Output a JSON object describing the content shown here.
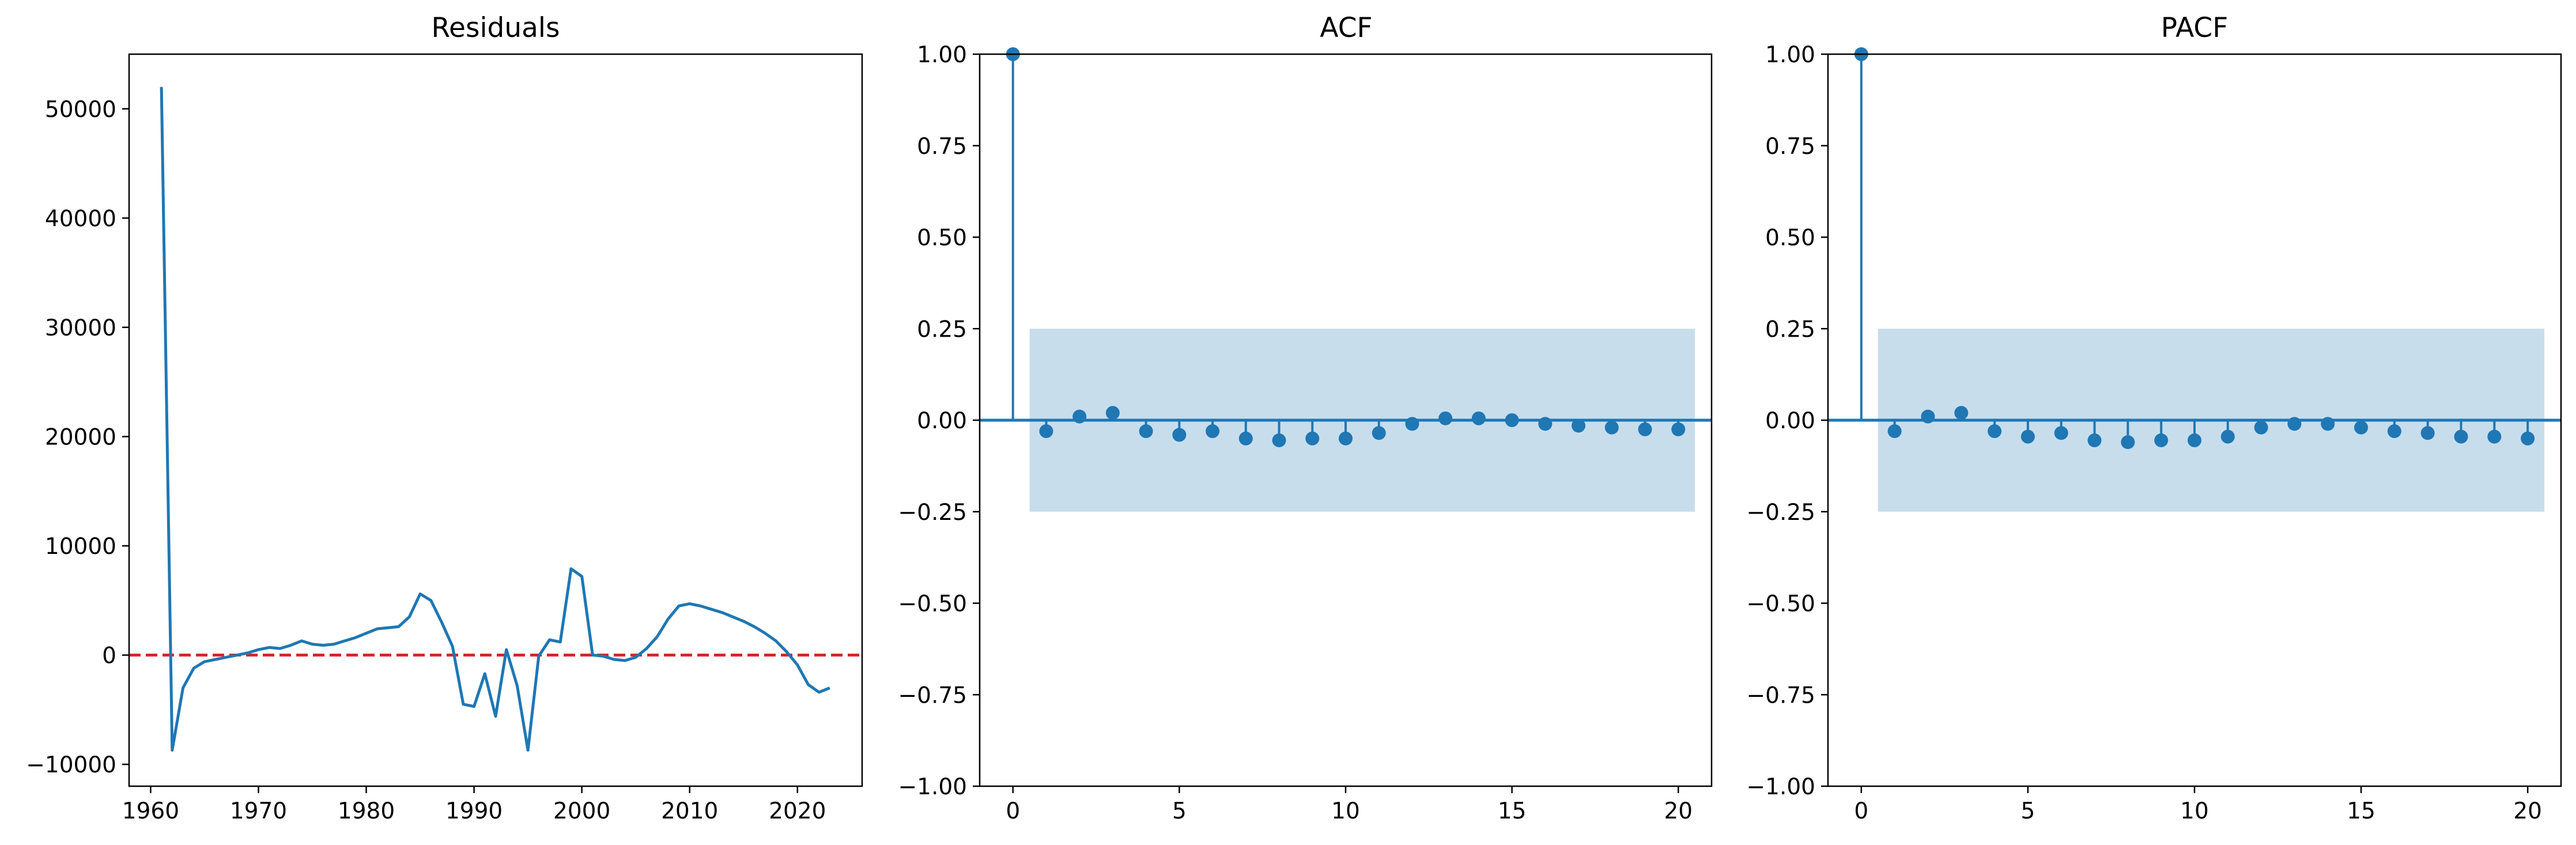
{
  "chart_data": [
    {
      "type": "line",
      "title": "Residuals",
      "xlim": [
        1958,
        2026
      ],
      "ylim": [
        -12000,
        55000
      ],
      "xticks": [
        1960,
        1970,
        1980,
        1990,
        2000,
        2010,
        2020
      ],
      "xtick_labels": [
        "1960",
        "1970",
        "1980",
        "1990",
        "2000",
        "2010",
        "2020"
      ],
      "yticks": [
        -10000,
        0,
        10000,
        20000,
        30000,
        40000,
        50000
      ],
      "ytick_labels": [
        "−10000",
        "0",
        "10000",
        "20000",
        "30000",
        "40000",
        "50000"
      ],
      "reference_line": {
        "y": 0,
        "color": "#d62728",
        "style": "dashed"
      },
      "line_color": "#1f77b4",
      "x": [
        1961,
        1962,
        1963,
        1964,
        1965,
        1966,
        1967,
        1968,
        1969,
        1970,
        1971,
        1972,
        1973,
        1974,
        1975,
        1976,
        1977,
        1978,
        1979,
        1980,
        1981,
        1982,
        1983,
        1984,
        1985,
        1986,
        1987,
        1988,
        1989,
        1990,
        1991,
        1992,
        1993,
        1994,
        1995,
        1996,
        1997,
        1998,
        1999,
        2000,
        2001,
        2002,
        2003,
        2004,
        2005,
        2006,
        2007,
        2008,
        2009,
        2010,
        2011,
        2012,
        2013,
        2014,
        2015,
        2016,
        2017,
        2018,
        2019,
        2020,
        2021,
        2022,
        2023
      ],
      "y": [
        52000,
        -8700,
        -3000,
        -1200,
        -600,
        -400,
        -200,
        0,
        200,
        500,
        700,
        600,
        900,
        1300,
        1000,
        900,
        1000,
        1300,
        1600,
        2000,
        2400,
        2500,
        2600,
        3500,
        5600,
        5000,
        3000,
        800,
        -4500,
        -4700,
        -1700,
        -5600,
        500,
        -2800,
        -8700,
        -100,
        1400,
        1200,
        7900,
        7200,
        0,
        -100,
        -400,
        -500,
        -200,
        600,
        1700,
        3300,
        4500,
        4700,
        4500,
        4200,
        3900,
        3500,
        3100,
        2600,
        2000,
        1300,
        300,
        -900,
        -2700,
        -3400,
        -3000
      ]
    },
    {
      "type": "stem",
      "title": "ACF",
      "xlim": [
        -1,
        21
      ],
      "ylim": [
        -1.0,
        1.0
      ],
      "xticks": [
        0,
        5,
        10,
        15,
        20
      ],
      "xtick_labels": [
        "0",
        "5",
        "10",
        "15",
        "20"
      ],
      "yticks": [
        -1.0,
        -0.75,
        -0.5,
        -0.25,
        0.0,
        0.25,
        0.5,
        0.75,
        1.0
      ],
      "ytick_labels": [
        "−1.00",
        "−0.75",
        "−0.50",
        "−0.25",
        "0.00",
        "0.25",
        "0.50",
        "0.75",
        "1.00"
      ],
      "confidence_band": {
        "x_start": 0.5,
        "x_end": 20.5,
        "upper": 0.25,
        "lower": -0.25,
        "color": "#1f77b4",
        "opacity": 0.25
      },
      "marker_color": "#1f77b4",
      "lags": [
        0,
        1,
        2,
        3,
        4,
        5,
        6,
        7,
        8,
        9,
        10,
        11,
        12,
        13,
        14,
        15,
        16,
        17,
        18,
        19,
        20
      ],
      "values": [
        1.0,
        -0.03,
        0.01,
        0.02,
        -0.03,
        -0.04,
        -0.03,
        -0.05,
        -0.055,
        -0.05,
        -0.05,
        -0.035,
        -0.01,
        0.005,
        0.005,
        0.0,
        -0.01,
        -0.015,
        -0.02,
        -0.025,
        -0.025
      ]
    },
    {
      "type": "stem",
      "title": "PACF",
      "xlim": [
        -1,
        21
      ],
      "ylim": [
        -1.0,
        1.0
      ],
      "xticks": [
        0,
        5,
        10,
        15,
        20
      ],
      "xtick_labels": [
        "0",
        "5",
        "10",
        "15",
        "20"
      ],
      "yticks": [
        -1.0,
        -0.75,
        -0.5,
        -0.25,
        0.0,
        0.25,
        0.5,
        0.75,
        1.0
      ],
      "ytick_labels": [
        "−1.00",
        "−0.75",
        "−0.50",
        "−0.25",
        "0.00",
        "0.25",
        "0.50",
        "0.75",
        "1.00"
      ],
      "confidence_band": {
        "x_start": 0.5,
        "x_end": 20.5,
        "upper": 0.25,
        "lower": -0.25,
        "color": "#1f77b4",
        "opacity": 0.25
      },
      "marker_color": "#1f77b4",
      "lags": [
        0,
        1,
        2,
        3,
        4,
        5,
        6,
        7,
        8,
        9,
        10,
        11,
        12,
        13,
        14,
        15,
        16,
        17,
        18,
        19,
        20
      ],
      "values": [
        1.0,
        -0.03,
        0.01,
        0.02,
        -0.03,
        -0.045,
        -0.035,
        -0.055,
        -0.06,
        -0.055,
        -0.055,
        -0.045,
        -0.02,
        -0.01,
        -0.01,
        -0.02,
        -0.03,
        -0.035,
        -0.045,
        -0.045,
        -0.05
      ]
    }
  ]
}
